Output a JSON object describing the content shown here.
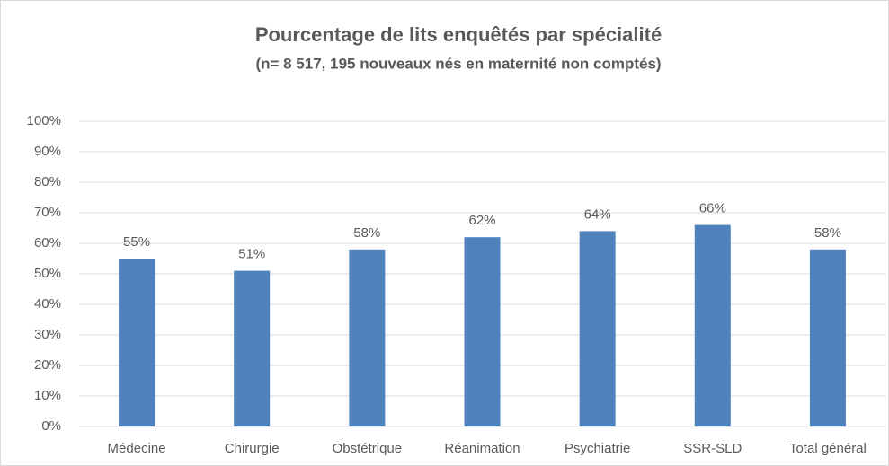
{
  "chart_data": {
    "type": "bar",
    "title": "Pourcentage de lits enquêtés par spécialité",
    "subtitle": "(n= 8 517, 195 nouveaux nés en maternité non comptés)",
    "categories": [
      "Médecine",
      "Chirurgie",
      "Obstétrique",
      "Réanimation",
      "Psychiatrie",
      "SSR-SLD",
      "Total général"
    ],
    "values": [
      55,
      51,
      58,
      62,
      64,
      66,
      58
    ],
    "value_labels": [
      "55%",
      "51%",
      "58%",
      "62%",
      "64%",
      "66%",
      "58%"
    ],
    "color": "#4f81bd",
    "ylim": [
      0,
      100
    ],
    "yticks": [
      {
        "value": 0,
        "label": "0%"
      },
      {
        "value": 10,
        "label": "10%"
      },
      {
        "value": 20,
        "label": "20%"
      },
      {
        "value": 30,
        "label": "30%"
      },
      {
        "value": 40,
        "label": "40%"
      },
      {
        "value": 50,
        "label": "50%"
      },
      {
        "value": 60,
        "label": "60%"
      },
      {
        "value": 70,
        "label": "70%"
      },
      {
        "value": 80,
        "label": "80%"
      },
      {
        "value": 90,
        "label": "90%"
      },
      {
        "value": 100,
        "label": "100%"
      }
    ],
    "grid": true
  }
}
